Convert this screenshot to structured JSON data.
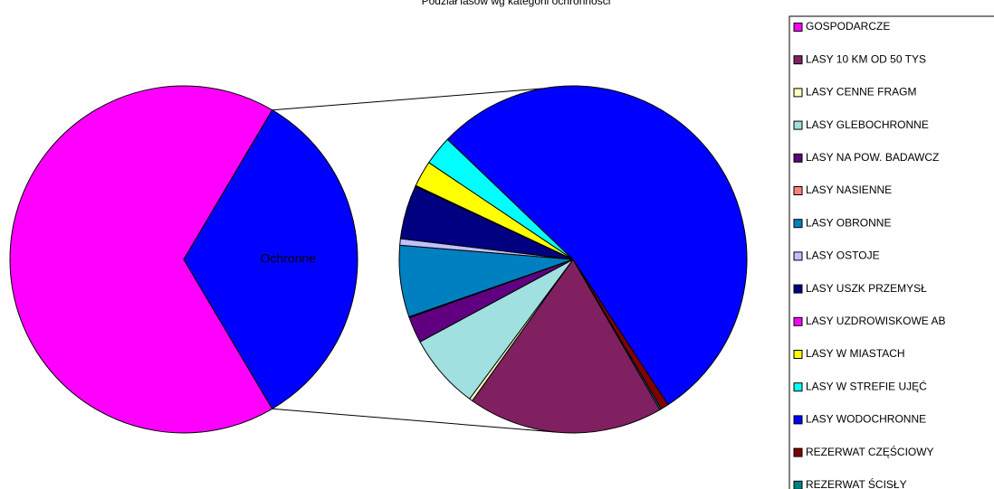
{
  "chart_data": {
    "type": "pie-of-pie",
    "title": "Podział lasów wg kategorii ochronności",
    "categories": [
      "GOSPODARCZE",
      "LASY 10 KM OD 50 TYS",
      "LASY CENNE FRAGM",
      "LASY GLEBOCHRONNE",
      "LASY NA POW. BADAWCZ",
      "LASY NASIENNE",
      "LASY OBRONNE",
      "LASY OSTOJE",
      "LASY USZK PRZEMYSŁ",
      "LASY UZDROWISKOWE AB",
      "LASY W MIASTACH",
      "LASY W STREFIE UJĘĆ",
      "LASY WODOCHRONNE",
      "REZERWAT CZĘŚCIOWY",
      "REZERWAT ŚCISŁY"
    ],
    "values": [
      67,
      6.0,
      0.1,
      2.3,
      0.8,
      0.03,
      2.2,
      0.2,
      1.65,
      0.03,
      0.8,
      0.9,
      17.7,
      0.24,
      0.05
    ],
    "colors": [
      "#ff00ff",
      "#802060",
      "#ffffc0",
      "#a0e0e0",
      "#600080",
      "#ff8080",
      "#0080c0",
      "#c0c0ff",
      "#000080",
      "#ff00ff",
      "#ffff00",
      "#00ffff",
      "#0000ff",
      "#800000",
      "#008080"
    ],
    "split_index": 1,
    "other_label": "Ochronne",
    "other_color": "#0000ff",
    "legend": "right"
  }
}
